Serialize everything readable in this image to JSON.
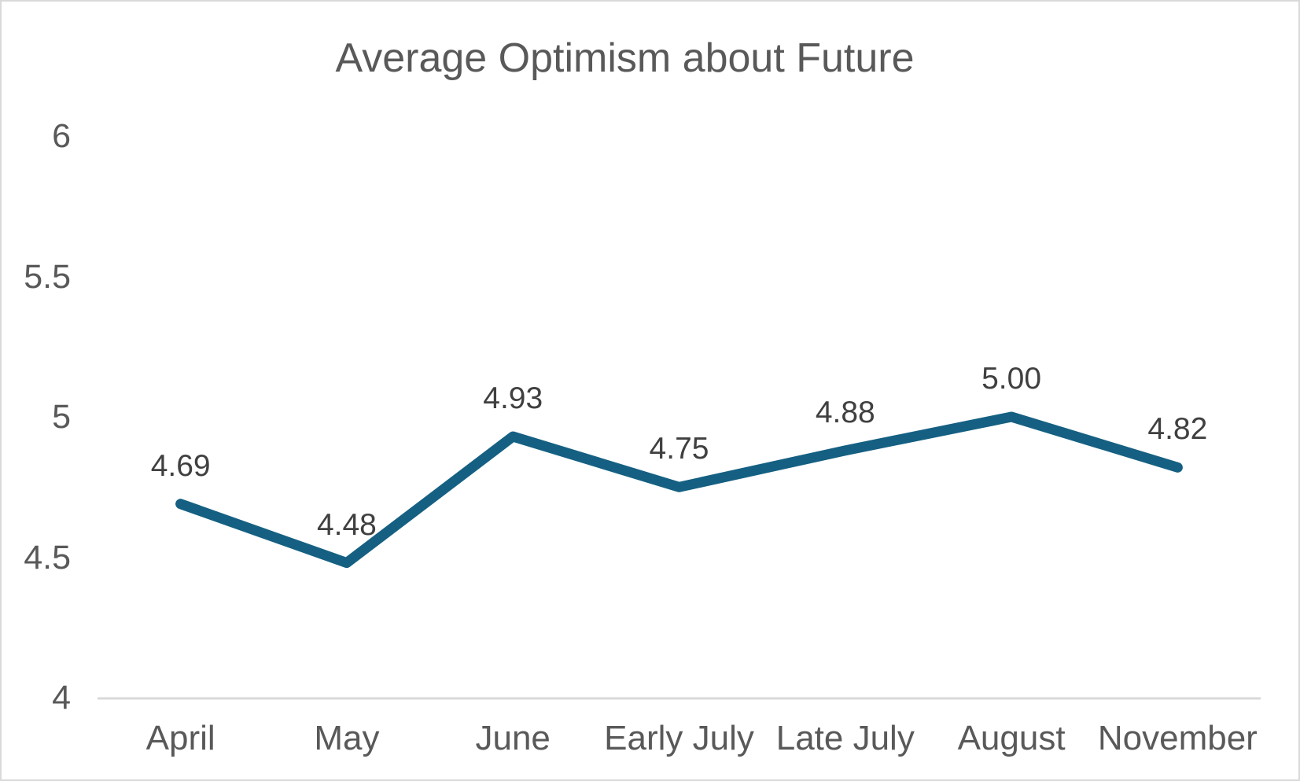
{
  "chart_data": {
    "type": "line",
    "title": "Average Optimism about Future",
    "categories": [
      "April",
      "May",
      "June",
      "Early July",
      "Late July",
      "August",
      "November"
    ],
    "values": [
      4.69,
      4.48,
      4.93,
      4.75,
      4.88,
      5.0,
      4.82
    ],
    "data_labels": [
      "4.69",
      "4.48",
      "4.93",
      "4.75",
      "4.88",
      "5.00",
      "4.82"
    ],
    "xlabel": "",
    "ylabel": "",
    "ylim": [
      4,
      6
    ],
    "y_ticks": [
      {
        "label": "6",
        "value": 6
      },
      {
        "label": "5.5",
        "value": 5.5
      },
      {
        "label": "5",
        "value": 5
      },
      {
        "label": "4.5",
        "value": 4.5
      },
      {
        "label": "4",
        "value": 4
      }
    ],
    "grid": false,
    "legend_position": "none",
    "colors": {
      "line": "#156082",
      "data_label": "#404040",
      "axis_text": "#595959",
      "title_text": "#595959",
      "axis_line": "#D9D9D9",
      "border": "#D9D9D9",
      "background": "#FFFFFF"
    }
  }
}
